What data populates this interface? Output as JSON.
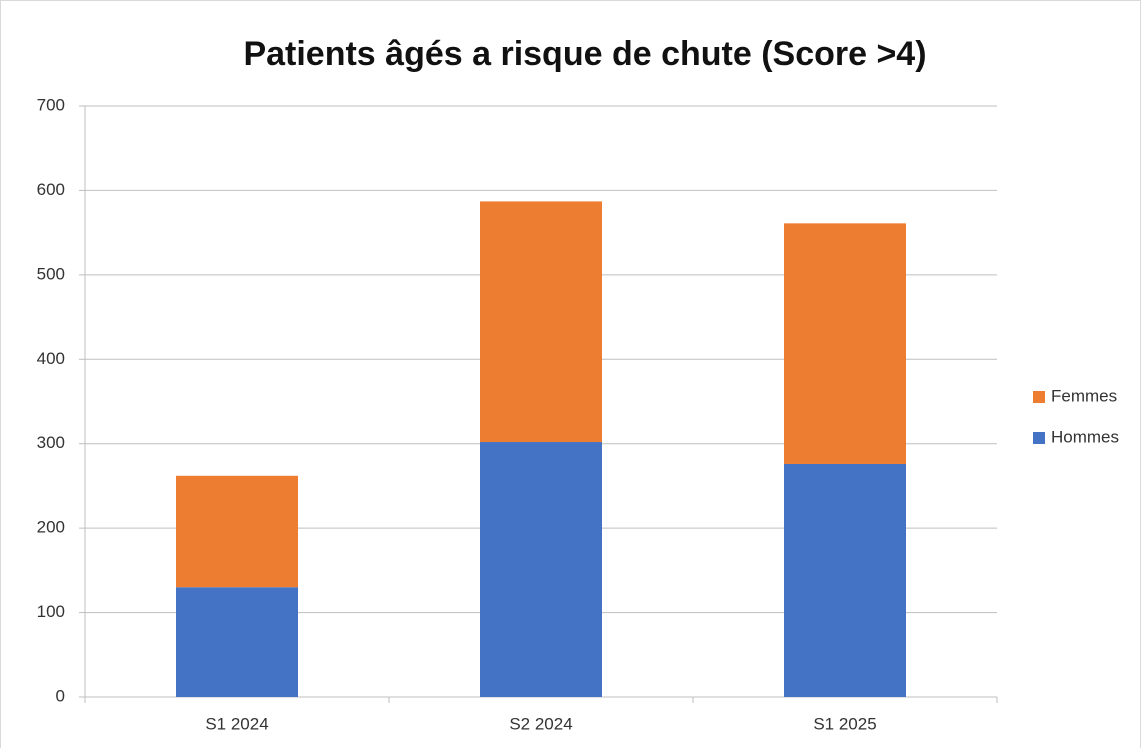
{
  "chart_data": {
    "type": "stacked_bar",
    "title": "Patients âgés a risque de chute (Score >4)",
    "categories": [
      "S1 2024",
      "S2 2024",
      "S1 2025"
    ],
    "series": [
      {
        "name": "Hommes",
        "color": "#4472c4",
        "values": [
          130,
          302,
          276
        ]
      },
      {
        "name": "Femmes",
        "color": "#ed7d31",
        "values": [
          132,
          285,
          285
        ]
      }
    ],
    "ylim": [
      0,
      700
    ],
    "yticks": [
      0,
      100,
      200,
      300,
      400,
      500,
      600,
      700
    ],
    "grid": true,
    "legend": "right"
  }
}
